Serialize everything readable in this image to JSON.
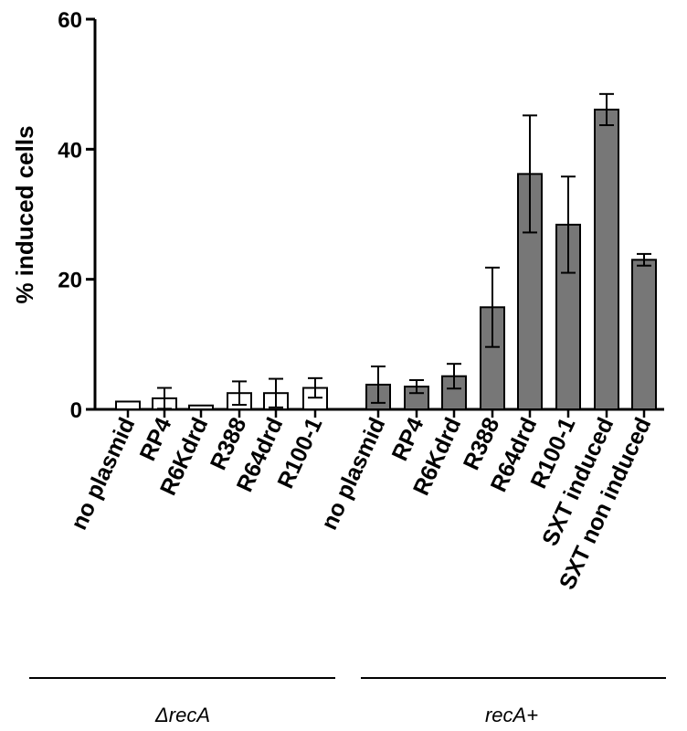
{
  "chart_data": {
    "type": "bar",
    "title": "",
    "xlabel": "",
    "ylabel": "% induced cells",
    "ylim": [
      0,
      60
    ],
    "yticks": [
      0,
      20,
      40,
      60
    ],
    "yticks_text": [
      "0",
      "20",
      "40",
      "60"
    ],
    "grid": false,
    "groups": [
      {
        "name": "ΔrecA",
        "fill": "#ffffff",
        "bars": [
          {
            "category": "no plasmid",
            "value": 1.2,
            "error": 0.0
          },
          {
            "category": "RP4",
            "value": 1.7,
            "error": 1.6
          },
          {
            "category": "R6Kdrd",
            "value": 0.6,
            "error": 0.0
          },
          {
            "category": "R388",
            "value": 2.5,
            "error": 1.8
          },
          {
            "category": "R64drd",
            "value": 2.5,
            "error": 2.2
          },
          {
            "category": "R100-1",
            "value": 3.3,
            "error": 1.5
          }
        ]
      },
      {
        "name": "recA+",
        "fill": "#777777",
        "bars": [
          {
            "category": "no plasmid",
            "value": 3.8,
            "error": 2.8
          },
          {
            "category": "RP4",
            "value": 3.5,
            "error": 1.0
          },
          {
            "category": "R6Kdrd",
            "value": 5.1,
            "error": 1.9
          },
          {
            "category": "R388",
            "value": 15.7,
            "error": 6.1
          },
          {
            "category": "R64drd",
            "value": 36.2,
            "error": 9.0
          },
          {
            "category": "R100-1",
            "value": 28.4,
            "error": 7.4
          },
          {
            "category": "SXT induced",
            "value": 46.1,
            "error": 2.4
          },
          {
            "category": "SXT non induced",
            "value": 23.0,
            "error": 0.9
          }
        ]
      }
    ]
  },
  "colors": {
    "axis": "#000000",
    "bar_outline": "#000000",
    "deltaRecA_fill": "#ffffff",
    "recAplus_fill": "#777777"
  }
}
